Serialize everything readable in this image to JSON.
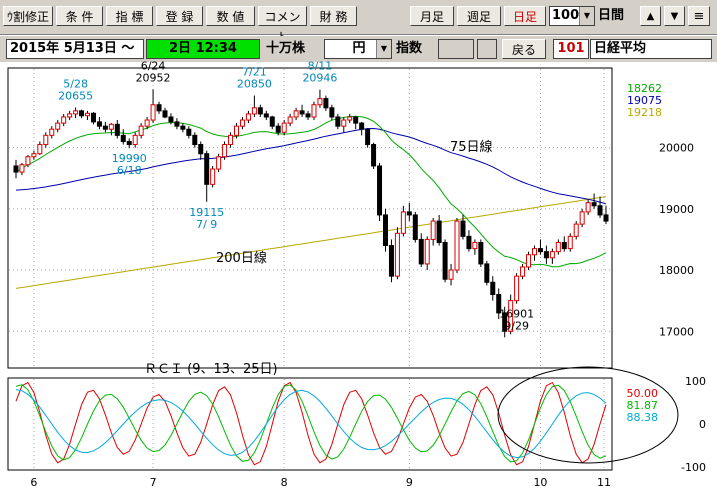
{
  "toolbar": {
    "buttons": [
      {
        "label": "ｳ割修正",
        "style": "active"
      },
      {
        "label": "条 件",
        "style": ""
      },
      {
        "label": "指 標",
        "style": ""
      },
      {
        "label": "登 録",
        "style": ""
      },
      {
        "label": "数 値",
        "style": ""
      },
      {
        "label": "コメント",
        "style": ""
      },
      {
        "label": "財 務",
        "style": ""
      },
      {
        "label": "月足",
        "style": ""
      },
      {
        "label": "週足",
        "style": ""
      },
      {
        "label": "日足",
        "style": "red"
      }
    ],
    "count_value": "100",
    "period_label": "日間",
    "arrow_up": "▲",
    "arrow_down": "▼",
    "scroll_button": "≡"
  },
  "info": {
    "date": "2015年 5月13日 ～",
    "current": "2日 12:34",
    "unit": "十万株",
    "currency": "円",
    "index_label": "指数",
    "back_button": "戻る",
    "code": "101",
    "name": "日経平均"
  },
  "colors": {
    "ma25": "#00aa00",
    "ma75": "#0000aa",
    "ma200": "#b8a800",
    "rci9": "#e00000",
    "rci13": "#00bb00",
    "rci25": "#00aadd"
  },
  "chart_data": {
    "type": "candlestick",
    "y_ticks": [
      "20000",
      "19000",
      "18000",
      "17000"
    ],
    "y_range": [
      16400,
      21300
    ],
    "ma_values": [
      {
        "name": "ma25",
        "value": "18262"
      },
      {
        "name": "ma75",
        "value": "19075"
      },
      {
        "name": "ma200",
        "value": "19218"
      }
    ],
    "ma_labels": {
      "ma75": "75日線",
      "ma200": "200日線"
    },
    "annotations": [
      {
        "date": "5/28",
        "value": "20655"
      },
      {
        "date": "6/18",
        "value": "19990"
      },
      {
        "date": "6/24",
        "value": "20952"
      },
      {
        "date": "7/ 9",
        "value": "19115"
      },
      {
        "date": "7/21",
        "value": "20850"
      },
      {
        "date": "8/11",
        "value": "20946"
      },
      {
        "date": "9/29",
        "value": "16901"
      }
    ],
    "rci_title": "ＲＣＩ (9、13、25日)",
    "rci_ticks": [
      "100",
      "0",
      "-100"
    ],
    "rci_values": [
      {
        "name": "rci9",
        "value": "50.00"
      },
      {
        "name": "rci13",
        "value": "81.87"
      },
      {
        "name": "rci25",
        "value": "88.38"
      }
    ],
    "x_labels": [
      "6",
      "7",
      "8",
      "9",
      "10",
      "11"
    ],
    "candles": [
      [
        19700,
        19800,
        19500,
        19600
      ],
      [
        19600,
        19750,
        19550,
        19720
      ],
      [
        19720,
        19880,
        19680,
        19850
      ],
      [
        19850,
        19950,
        19800,
        19900
      ],
      [
        19900,
        20100,
        19880,
        20050
      ],
      [
        20050,
        20250,
        20000,
        20200
      ],
      [
        20200,
        20350,
        20150,
        20300
      ],
      [
        20300,
        20450,
        20250,
        20400
      ],
      [
        20400,
        20550,
        20350,
        20500
      ],
      [
        20500,
        20600,
        20450,
        20550
      ],
      [
        20550,
        20655,
        20480,
        20600
      ],
      [
        20600,
        20620,
        20480,
        20520
      ],
      [
        20520,
        20600,
        20450,
        20560
      ],
      [
        20560,
        20580,
        20380,
        20420
      ],
      [
        20420,
        20500,
        20300,
        20350
      ],
      [
        20350,
        20420,
        20250,
        20300
      ],
      [
        20300,
        20400,
        20200,
        20380
      ],
      [
        20380,
        20450,
        20150,
        20200
      ],
      [
        20200,
        20300,
        20050,
        20100
      ],
      [
        20100,
        20150,
        19990,
        20050
      ],
      [
        20050,
        20250,
        20000,
        20200
      ],
      [
        20200,
        20400,
        20150,
        20350
      ],
      [
        20350,
        20500,
        20300,
        20450
      ],
      [
        20450,
        20952,
        20400,
        20700
      ],
      [
        20700,
        20750,
        20550,
        20600
      ],
      [
        20600,
        20650,
        20480,
        20500
      ],
      [
        20500,
        20560,
        20380,
        20420
      ],
      [
        20420,
        20480,
        20300,
        20350
      ],
      [
        20350,
        20400,
        20250,
        20300
      ],
      [
        20300,
        20350,
        20150,
        20200
      ],
      [
        20200,
        20250,
        20000,
        20050
      ],
      [
        20050,
        20100,
        19800,
        19900
      ],
      [
        19900,
        19950,
        19115,
        19400
      ],
      [
        19400,
        19700,
        19350,
        19650
      ],
      [
        19650,
        19900,
        19600,
        19850
      ],
      [
        19850,
        20100,
        19800,
        20050
      ],
      [
        20050,
        20250,
        20000,
        20200
      ],
      [
        20200,
        20400,
        20150,
        20350
      ],
      [
        20350,
        20500,
        20300,
        20450
      ],
      [
        20450,
        20600,
        20400,
        20550
      ],
      [
        20550,
        20850,
        20500,
        20650
      ],
      [
        20650,
        20700,
        20500,
        20550
      ],
      [
        20550,
        20600,
        20450,
        20500
      ],
      [
        20500,
        20520,
        20300,
        20350
      ],
      [
        20350,
        20400,
        20200,
        20250
      ],
      [
        20250,
        20450,
        20200,
        20400
      ],
      [
        20400,
        20550,
        20350,
        20500
      ],
      [
        20500,
        20650,
        20450,
        20600
      ],
      [
        20600,
        20700,
        20500,
        20550
      ],
      [
        20550,
        20600,
        20450,
        20500
      ],
      [
        20500,
        20750,
        20450,
        20700
      ],
      [
        20700,
        20946,
        20650,
        20800
      ],
      [
        20800,
        20850,
        20600,
        20650
      ],
      [
        20650,
        20700,
        20450,
        20500
      ],
      [
        20500,
        20550,
        20300,
        20350
      ],
      [
        20350,
        20500,
        20250,
        20450
      ],
      [
        20450,
        20550,
        20400,
        20500
      ],
      [
        20500,
        20520,
        20300,
        20400
      ],
      [
        20400,
        20420,
        20200,
        20300
      ],
      [
        20300,
        20320,
        20000,
        20050
      ],
      [
        20050,
        20080,
        19650,
        19700
      ],
      [
        19700,
        19750,
        18800,
        18900
      ],
      [
        18900,
        19000,
        18300,
        18400
      ],
      [
        18400,
        18500,
        17800,
        17900
      ],
      [
        17900,
        18700,
        17850,
        18600
      ],
      [
        18600,
        19050,
        18550,
        18950
      ],
      [
        18950,
        19100,
        18800,
        18900
      ],
      [
        18900,
        18950,
        18450,
        18500
      ],
      [
        18500,
        18600,
        18050,
        18100
      ],
      [
        18100,
        18550,
        18000,
        18500
      ],
      [
        18500,
        18850,
        18400,
        18800
      ],
      [
        18800,
        18900,
        18400,
        18450
      ],
      [
        18450,
        18500,
        17800,
        17850
      ],
      [
        17850,
        18100,
        17750,
        18000
      ],
      [
        18000,
        18850,
        17950,
        18800
      ],
      [
        18800,
        18900,
        18500,
        18550
      ],
      [
        18550,
        18650,
        18300,
        18350
      ],
      [
        18350,
        18500,
        18250,
        18450
      ],
      [
        18450,
        18500,
        18050,
        18100
      ],
      [
        18100,
        18150,
        17750,
        17800
      ],
      [
        17800,
        17900,
        17500,
        17600
      ],
      [
        17600,
        17700,
        17200,
        17300
      ],
      [
        17300,
        17400,
        16901,
        17000
      ],
      [
        17000,
        17600,
        16950,
        17500
      ],
      [
        17500,
        17950,
        17450,
        17900
      ],
      [
        17900,
        18100,
        17850,
        18050
      ],
      [
        18050,
        18300,
        18000,
        18250
      ],
      [
        18250,
        18400,
        18150,
        18350
      ],
      [
        18350,
        18500,
        18250,
        18300
      ],
      [
        18300,
        18400,
        18100,
        18200
      ],
      [
        18200,
        18350,
        18100,
        18300
      ],
      [
        18300,
        18500,
        18250,
        18450
      ],
      [
        18450,
        18550,
        18300,
        18350
      ],
      [
        18350,
        18600,
        18300,
        18550
      ],
      [
        18550,
        18800,
        18500,
        18750
      ],
      [
        18750,
        19000,
        18700,
        18950
      ],
      [
        18950,
        19150,
        18900,
        19100
      ],
      [
        19100,
        19250,
        19000,
        19050
      ],
      [
        19050,
        19200,
        18850,
        18900
      ],
      [
        18900,
        19050,
        18750,
        18800
      ]
    ]
  }
}
